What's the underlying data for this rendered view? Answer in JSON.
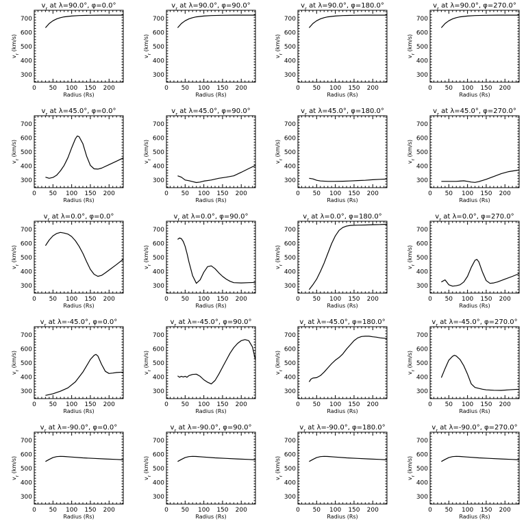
{
  "chart_data": {
    "type": "line",
    "layout": {
      "rows": 5,
      "cols": 4
    },
    "xlabel": "Radius (Rs)",
    "ylabel": "vr (km/s)",
    "title_format": "v_r at λ={lat}°, φ={lon}°",
    "xlim": [
      0,
      238
    ],
    "ylim": [
      245,
      760
    ],
    "xticks": [
      0,
      50,
      100,
      150,
      200
    ],
    "yticks": [
      300,
      400,
      500,
      600,
      700
    ],
    "panels": [
      {
        "title": "vr at λ=90.0°, φ=0.0°",
        "x": [
          30,
          40,
          50,
          60,
          70,
          80,
          100,
          120,
          150,
          180,
          210,
          238
        ],
        "y": [
          635,
          665,
          685,
          698,
          707,
          713,
          719,
          722,
          724,
          725,
          725,
          725
        ]
      },
      {
        "title": "vr at λ=90.0°, φ=90.0°",
        "x": [
          30,
          40,
          50,
          60,
          70,
          80,
          100,
          120,
          150,
          180,
          210,
          238
        ],
        "y": [
          635,
          665,
          685,
          698,
          707,
          713,
          719,
          722,
          724,
          725,
          725,
          725
        ]
      },
      {
        "title": "vr at λ=90.0°, φ=180.0°",
        "x": [
          30,
          40,
          50,
          60,
          70,
          80,
          100,
          120,
          150,
          180,
          210,
          238
        ],
        "y": [
          635,
          665,
          685,
          698,
          707,
          713,
          719,
          722,
          724,
          725,
          725,
          725
        ]
      },
      {
        "title": "vr at λ=90.0°, φ=270.0°",
        "x": [
          30,
          40,
          50,
          60,
          70,
          80,
          100,
          120,
          150,
          180,
          210,
          238
        ],
        "y": [
          635,
          665,
          685,
          698,
          707,
          713,
          719,
          722,
          724,
          725,
          725,
          725
        ]
      },
      {
        "title": "vr at λ=45.0°, φ=0.0°",
        "x": [
          30,
          40,
          50,
          60,
          70,
          80,
          90,
          100,
          110,
          115,
          120,
          130,
          140,
          150,
          160,
          170,
          180,
          200,
          220,
          238
        ],
        "y": [
          320,
          312,
          318,
          335,
          365,
          405,
          460,
          530,
          595,
          615,
          610,
          560,
          470,
          405,
          380,
          378,
          385,
          410,
          435,
          458
        ]
      },
      {
        "title": "vr at λ=45.0°, φ=90.0°",
        "x": [
          30,
          40,
          50,
          60,
          70,
          80,
          90,
          100,
          120,
          140,
          160,
          180,
          200,
          220,
          238
        ],
        "y": [
          330,
          320,
          300,
          295,
          288,
          282,
          285,
          292,
          300,
          312,
          320,
          330,
          355,
          382,
          405
        ]
      },
      {
        "title": "vr at λ=45.0°, φ=180.0°",
        "x": [
          30,
          40,
          50,
          60,
          80,
          100,
          120,
          140,
          160,
          180,
          200,
          220,
          238
        ],
        "y": [
          312,
          308,
          298,
          293,
          290,
          290,
          291,
          293,
          296,
          298,
          302,
          305,
          307
        ]
      },
      {
        "title": "vr at λ=45.0°, φ=270.0°",
        "x": [
          30,
          50,
          70,
          80,
          90,
          100,
          110,
          120,
          130,
          150,
          170,
          190,
          210,
          238
        ],
        "y": [
          290,
          290,
          290,
          292,
          294,
          290,
          285,
          283,
          288,
          305,
          325,
          345,
          360,
          372
        ]
      },
      {
        "title": "vr at λ=0.0°, φ=0.0°",
        "x": [
          30,
          40,
          50,
          60,
          70,
          80,
          90,
          100,
          110,
          120,
          130,
          140,
          150,
          160,
          170,
          180,
          190,
          200,
          220,
          238
        ],
        "y": [
          585,
          625,
          655,
          672,
          680,
          675,
          668,
          650,
          620,
          580,
          530,
          470,
          415,
          380,
          365,
          372,
          390,
          410,
          450,
          488
        ]
      },
      {
        "title": "vr at λ=0.0°, φ=90.0°",
        "x": [
          30,
          35,
          40,
          45,
          50,
          55,
          60,
          70,
          80,
          90,
          100,
          110,
          120,
          130,
          140,
          150,
          160,
          170,
          180,
          200,
          220,
          238
        ],
        "y": [
          630,
          640,
          635,
          615,
          580,
          530,
          470,
          370,
          315,
          340,
          395,
          435,
          440,
          420,
          390,
          365,
          345,
          330,
          320,
          318,
          320,
          322
        ]
      },
      {
        "title": "vr at λ=0.0°, φ=180.0°",
        "x": [
          30,
          40,
          50,
          60,
          70,
          80,
          90,
          100,
          110,
          120,
          130,
          140,
          160,
          180,
          200,
          220,
          238
        ],
        "y": [
          270,
          305,
          345,
          400,
          460,
          530,
          600,
          655,
          695,
          715,
          725,
          730,
          732,
          733,
          735,
          736,
          738
        ]
      },
      {
        "title": "vr at λ=0.0°, φ=270.0°",
        "x": [
          30,
          40,
          50,
          60,
          70,
          80,
          90,
          100,
          110,
          120,
          125,
          130,
          140,
          150,
          160,
          170,
          180,
          200,
          220,
          238
        ],
        "y": [
          325,
          340,
          305,
          295,
          298,
          305,
          325,
          365,
          430,
          480,
          487,
          470,
          395,
          335,
          315,
          318,
          325,
          345,
          365,
          385
        ]
      },
      {
        "title": "vr at λ=-45.0°, φ=0.0°",
        "x": [
          30,
          50,
          70,
          90,
          110,
          130,
          140,
          150,
          160,
          165,
          170,
          180,
          190,
          200,
          210,
          220,
          238
        ],
        "y": [
          268,
          280,
          298,
          322,
          365,
          435,
          480,
          525,
          555,
          562,
          550,
          490,
          440,
          425,
          428,
          432,
          435
        ]
      },
      {
        "title": "vr at λ=-45.0°, φ=90.0°",
        "x": [
          30,
          35,
          40,
          45,
          50,
          55,
          60,
          70,
          80,
          90,
          100,
          110,
          120,
          130,
          140,
          150,
          160,
          170,
          180,
          190,
          200,
          210,
          220,
          230,
          238
        ],
        "y": [
          408,
          398,
          405,
          400,
          405,
          398,
          410,
          418,
          420,
          405,
          380,
          362,
          350,
          375,
          420,
          470,
          520,
          570,
          610,
          640,
          660,
          668,
          660,
          615,
          520
        ]
      },
      {
        "title": "vr at λ=-45.0°, φ=180.0°",
        "x": [
          30,
          35,
          40,
          50,
          60,
          70,
          80,
          90,
          100,
          110,
          120,
          130,
          140,
          150,
          160,
          170,
          180,
          190,
          200,
          210,
          220,
          238
        ],
        "y": [
          365,
          385,
          392,
          395,
          410,
          435,
          465,
          495,
          520,
          540,
          565,
          600,
          630,
          660,
          680,
          690,
          692,
          692,
          688,
          685,
          680,
          675
        ]
      },
      {
        "title": "vr at λ=-45.0°, φ=270.0°",
        "x": [
          30,
          40,
          50,
          60,
          65,
          70,
          80,
          90,
          100,
          110,
          120,
          130,
          140,
          150,
          170,
          190,
          210,
          238
        ],
        "y": [
          395,
          460,
          520,
          548,
          555,
          550,
          525,
          480,
          420,
          350,
          325,
          318,
          312,
          308,
          305,
          304,
          308,
          312
        ]
      },
      {
        "title": "vr at λ=-90.0°, φ=0.0°",
        "x": [
          30,
          40,
          50,
          60,
          70,
          80,
          100,
          130,
          160,
          190,
          220,
          238
        ],
        "y": [
          550,
          565,
          578,
          585,
          587,
          586,
          582,
          576,
          572,
          568,
          565,
          562
        ]
      },
      {
        "title": "vr at λ=-90.0°, φ=90.0°",
        "x": [
          30,
          40,
          50,
          60,
          70,
          80,
          100,
          130,
          160,
          190,
          220,
          238
        ],
        "y": [
          550,
          565,
          578,
          585,
          587,
          586,
          582,
          576,
          572,
          568,
          565,
          562
        ]
      },
      {
        "title": "vr at λ=-90.0°, φ=180.0°",
        "x": [
          30,
          40,
          50,
          60,
          70,
          80,
          100,
          130,
          160,
          190,
          220,
          238
        ],
        "y": [
          550,
          565,
          578,
          585,
          587,
          586,
          582,
          576,
          572,
          568,
          565,
          562
        ]
      },
      {
        "title": "vr at λ=-90.0°, φ=270.0°",
        "x": [
          30,
          40,
          50,
          60,
          70,
          80,
          100,
          130,
          160,
          190,
          220,
          238
        ],
        "y": [
          550,
          565,
          578,
          585,
          587,
          586,
          582,
          576,
          572,
          568,
          565,
          562
        ]
      }
    ]
  }
}
